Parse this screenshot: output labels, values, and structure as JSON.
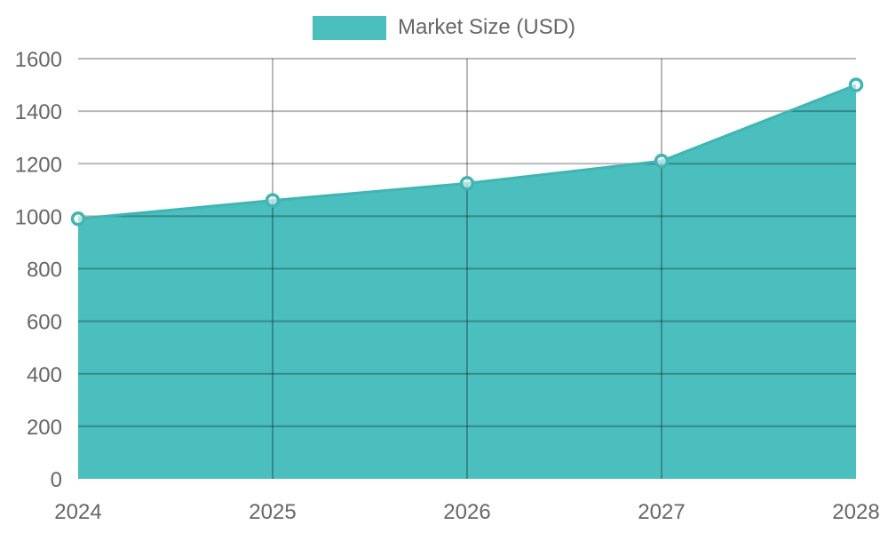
{
  "chart_data": {
    "type": "area",
    "title": "",
    "x_categories": [
      "2024",
      "2025",
      "2026",
      "2027",
      "2028"
    ],
    "series": [
      {
        "name": "Market Size (USD)",
        "values": [
          990,
          1060,
          1125,
          1210,
          1500
        ]
      }
    ],
    "xlabel": "",
    "ylabel": "",
    "ylim": [
      0,
      1600
    ],
    "ytick_step": 200,
    "ytick_labels": [
      "0",
      "200",
      "400",
      "600",
      "800",
      "1000",
      "1200",
      "1400",
      "1600"
    ],
    "grid": true,
    "legend_position": "top-center",
    "colors": {
      "area_fill": "#4BBEBE",
      "line": "#41B4B4",
      "point_fill": "rgba(255,255,255,0.6)",
      "grid": "rgba(0,0,0,0.28)",
      "axis_text": "#666666"
    }
  }
}
